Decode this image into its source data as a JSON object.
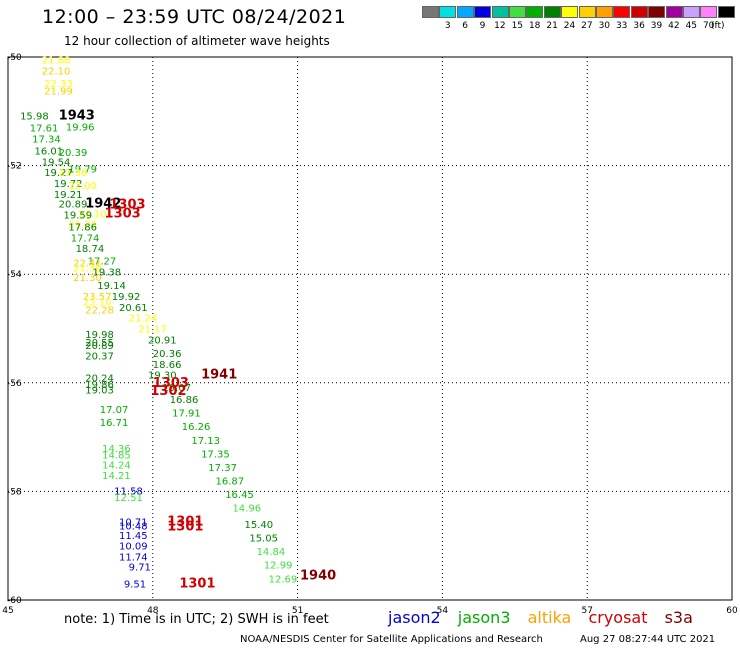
{
  "header": {
    "title": "12:00 – 23:59 UTC 08/24/2021",
    "subtitle": "12 hour collection of altimeter wave heights"
  },
  "color_scale": {
    "labels": [
      "",
      "3",
      "6",
      "9",
      "12",
      "15",
      "18",
      "21",
      "24",
      "27",
      "30",
      "33",
      "36",
      "39",
      "42",
      "45",
      "70"
    ],
    "colors": [
      "#777777",
      "#00e0e0",
      "#00a8ff",
      "#0000e0",
      "#00c0a0",
      "#40e040",
      "#00b000",
      "#008000",
      "#ffff00",
      "#ffd000",
      "#ffa000",
      "#ff0000",
      "#d00000",
      "#800000",
      "#a000a0",
      "#c8a0ff",
      "#ff80ff",
      "#000000"
    ],
    "unit": "(ft)"
  },
  "legend": [
    {
      "name": "jason2",
      "color": "#0000e0"
    },
    {
      "name": "jason3",
      "color": "#00b000"
    },
    {
      "name": "altika",
      "color": "#ffa000"
    },
    {
      "name": "cryosat",
      "color": "#d00000"
    },
    {
      "name": "s3a",
      "color": "#800000"
    }
  ],
  "footer": {
    "note": "note: 1) Time is in UTC; 2) SWH is in feet",
    "credit": "NOAA/NESDIS Center for Satellite Applications and Research",
    "generated": "Aug 27 08:27:44 UTC 2021"
  },
  "chart_data": {
    "type": "scatter",
    "xlim": [
      45,
      60
    ],
    "ylim": [
      -60,
      -50
    ],
    "x_ticks": [
      "45",
      "48",
      "51",
      "54",
      "57",
      "60"
    ],
    "y_ticks": [
      "-50",
      "-52",
      "-54",
      "-56",
      "-58",
      "-60"
    ],
    "grid": true,
    "points": [
      {
        "x": 45.7,
        "y": -50.05,
        "label": "21.88",
        "color": "#ffff00"
      },
      {
        "x": 45.7,
        "y": -50.25,
        "label": "22.10",
        "color": "#ffd000"
      },
      {
        "x": 45.75,
        "y": -50.48,
        "label": "22.33",
        "color": "#ffff00"
      },
      {
        "x": 45.75,
        "y": -50.62,
        "label": "21.99",
        "color": "#ffd000"
      },
      {
        "x": 45.25,
        "y": -51.08,
        "label": "15.98",
        "color": "#008000"
      },
      {
        "x": 46.05,
        "y": -51.08,
        "label": "1943",
        "color": "#000000",
        "big": true
      },
      {
        "x": 46.2,
        "y": -51.28,
        "label": "19.96",
        "color": "#00b000"
      },
      {
        "x": 45.45,
        "y": -51.3,
        "label": "17.61",
        "color": "#00b000"
      },
      {
        "x": 45.5,
        "y": -51.5,
        "label": "17.34",
        "color": "#00b000"
      },
      {
        "x": 45.55,
        "y": -51.72,
        "label": "16.01",
        "color": "#008000"
      },
      {
        "x": 46.05,
        "y": -51.75,
        "label": "20.39",
        "color": "#00b000"
      },
      {
        "x": 45.7,
        "y": -51.92,
        "label": "19.54",
        "color": "#008000"
      },
      {
        "x": 46.25,
        "y": -52.05,
        "label": "19.79",
        "color": "#00b000"
      },
      {
        "x": 45.75,
        "y": -52.12,
        "label": "19.27",
        "color": "#008000"
      },
      {
        "x": 46.05,
        "y": -52.12,
        "label": "21.36",
        "color": "#ffff00"
      },
      {
        "x": 45.95,
        "y": -52.32,
        "label": "19.72",
        "color": "#008000"
      },
      {
        "x": 46.25,
        "y": -52.36,
        "label": "22.00",
        "color": "#ffff00"
      },
      {
        "x": 45.95,
        "y": -52.52,
        "label": "19.21",
        "color": "#008000"
      },
      {
        "x": 46.05,
        "y": -52.7,
        "label": "20.89",
        "color": "#008000"
      },
      {
        "x": 46.6,
        "y": -52.7,
        "label": "1942",
        "color": "#000000",
        "big": true
      },
      {
        "x": 47.1,
        "y": -52.72,
        "label": "1303",
        "color": "#d00000",
        "big": true
      },
      {
        "x": 47.0,
        "y": -52.88,
        "label": "1303",
        "color": "#d00000",
        "big": true
      },
      {
        "x": 46.45,
        "y": -52.88,
        "label": "22.10",
        "color": "#ffff00"
      },
      {
        "x": 46.15,
        "y": -52.9,
        "label": "19.59",
        "color": "#008000"
      },
      {
        "x": 46.25,
        "y": -53.08,
        "label": "21.20",
        "color": "#ffff00"
      },
      {
        "x": 46.25,
        "y": -53.12,
        "label": "17.86",
        "color": "#008000"
      },
      {
        "x": 46.3,
        "y": -53.32,
        "label": "17.74",
        "color": "#00b000"
      },
      {
        "x": 46.4,
        "y": -53.52,
        "label": "18.74",
        "color": "#008000"
      },
      {
        "x": 46.65,
        "y": -53.75,
        "label": "17.27",
        "color": "#00b000"
      },
      {
        "x": 46.35,
        "y": -53.78,
        "label": "22.41",
        "color": "#ffd000"
      },
      {
        "x": 46.35,
        "y": -53.88,
        "label": "21.39",
        "color": "#ffff00"
      },
      {
        "x": 46.75,
        "y": -53.95,
        "label": "19.38",
        "color": "#008000"
      },
      {
        "x": 46.35,
        "y": -54.05,
        "label": "21.30",
        "color": "#ffd000"
      },
      {
        "x": 46.85,
        "y": -54.2,
        "label": "19.14",
        "color": "#008000"
      },
      {
        "x": 46.55,
        "y": -54.4,
        "label": "23.57",
        "color": "#ffd000"
      },
      {
        "x": 47.15,
        "y": -54.4,
        "label": "19.92",
        "color": "#008000"
      },
      {
        "x": 46.55,
        "y": -54.5,
        "label": "23.10",
        "color": "#ffff00"
      },
      {
        "x": 47.3,
        "y": -54.6,
        "label": "20.61",
        "color": "#008000"
      },
      {
        "x": 46.6,
        "y": -54.65,
        "label": "22.28",
        "color": "#ffd000"
      },
      {
        "x": 47.5,
        "y": -54.8,
        "label": "21.24",
        "color": "#ffff00"
      },
      {
        "x": 47.7,
        "y": -55.0,
        "label": "21.17",
        "color": "#ffff00"
      },
      {
        "x": 46.6,
        "y": -55.1,
        "label": "19.98",
        "color": "#008000"
      },
      {
        "x": 46.6,
        "y": -55.25,
        "label": "20.55",
        "color": "#008000"
      },
      {
        "x": 47.9,
        "y": -55.2,
        "label": "20.91",
        "color": "#008000"
      },
      {
        "x": 46.6,
        "y": -55.3,
        "label": "20.89",
        "color": "#008000"
      },
      {
        "x": 48.0,
        "y": -55.45,
        "label": "20.36",
        "color": "#008000"
      },
      {
        "x": 46.6,
        "y": -55.5,
        "label": "20.37",
        "color": "#008000"
      },
      {
        "x": 48.0,
        "y": -55.65,
        "label": "18.66",
        "color": "#008000"
      },
      {
        "x": 47.9,
        "y": -55.85,
        "label": "19.30",
        "color": "#008000"
      },
      {
        "x": 49.0,
        "y": -55.85,
        "label": "1941",
        "color": "#800000",
        "big": true
      },
      {
        "x": 46.6,
        "y": -55.9,
        "label": "20.24",
        "color": "#008000"
      },
      {
        "x": 46.6,
        "y": -56.02,
        "label": "19.86",
        "color": "#008000"
      },
      {
        "x": 48.0,
        "y": -56.0,
        "label": "1303",
        "color": "#d00000",
        "big": true
      },
      {
        "x": 46.6,
        "y": -56.12,
        "label": "19.03",
        "color": "#008000"
      },
      {
        "x": 48.2,
        "y": -56.08,
        "label": "19.07",
        "color": "#008000"
      },
      {
        "x": 47.95,
        "y": -56.15,
        "label": "1302",
        "color": "#d00000",
        "big": true
      },
      {
        "x": 48.35,
        "y": -56.3,
        "label": "16.86",
        "color": "#008000"
      },
      {
        "x": 46.9,
        "y": -56.48,
        "label": "17.07",
        "color": "#00b000"
      },
      {
        "x": 48.4,
        "y": -56.55,
        "label": "17.91",
        "color": "#00b000"
      },
      {
        "x": 46.9,
        "y": -56.72,
        "label": "16.71",
        "color": "#00b000"
      },
      {
        "x": 48.6,
        "y": -56.8,
        "label": "16.26",
        "color": "#00b000"
      },
      {
        "x": 46.95,
        "y": -57.2,
        "label": "14.36",
        "color": "#40e040"
      },
      {
        "x": 48.8,
        "y": -57.05,
        "label": "17.13",
        "color": "#00b000"
      },
      {
        "x": 46.95,
        "y": -57.32,
        "label": "14.85",
        "color": "#40e040"
      },
      {
        "x": 46.95,
        "y": -57.5,
        "label": "14.24",
        "color": "#40e040"
      },
      {
        "x": 49.0,
        "y": -57.3,
        "label": "17.35",
        "color": "#00b000"
      },
      {
        "x": 46.95,
        "y": -57.7,
        "label": "14.21",
        "color": "#40e040"
      },
      {
        "x": 49.15,
        "y": -57.55,
        "label": "17.37",
        "color": "#00b000"
      },
      {
        "x": 49.3,
        "y": -57.8,
        "label": "16.87",
        "color": "#00b000"
      },
      {
        "x": 47.2,
        "y": -57.98,
        "label": "11.58",
        "color": "#0000e0"
      },
      {
        "x": 49.5,
        "y": -58.05,
        "label": "16.45",
        "color": "#00b000"
      },
      {
        "x": 47.2,
        "y": -58.1,
        "label": "12.51",
        "color": "#40e040"
      },
      {
        "x": 49.65,
        "y": -58.3,
        "label": "14.96",
        "color": "#40e040"
      },
      {
        "x": 47.3,
        "y": -58.55,
        "label": "10.71",
        "color": "#0000e0"
      },
      {
        "x": 48.3,
        "y": -58.55,
        "label": "1301",
        "color": "#d00000",
        "big": true
      },
      {
        "x": 47.3,
        "y": -58.63,
        "label": "10.48",
        "color": "#0000e0"
      },
      {
        "x": 48.3,
        "y": -58.65,
        "label": "1301",
        "color": "#d00000",
        "big": true
      },
      {
        "x": 49.9,
        "y": -58.6,
        "label": "15.40",
        "color": "#008000"
      },
      {
        "x": 47.3,
        "y": -58.8,
        "label": "11.45",
        "color": "#0000e0"
      },
      {
        "x": 50.0,
        "y": -58.85,
        "label": "15.05",
        "color": "#008000"
      },
      {
        "x": 47.3,
        "y": -59.0,
        "label": "10.09",
        "color": "#0000e0"
      },
      {
        "x": 50.15,
        "y": -59.1,
        "label": "14.84",
        "color": "#40e040"
      },
      {
        "x": 47.3,
        "y": -59.2,
        "label": "11.74",
        "color": "#0000e0"
      },
      {
        "x": 50.3,
        "y": -59.35,
        "label": "12.99",
        "color": "#40e040"
      },
      {
        "x": 47.5,
        "y": -59.38,
        "label": "9.71",
        "color": "#0000e0"
      },
      {
        "x": 50.4,
        "y": -59.6,
        "label": "12.69",
        "color": "#40e040"
      },
      {
        "x": 51.05,
        "y": -59.55,
        "label": "1940",
        "color": "#800000",
        "big": true
      },
      {
        "x": 47.4,
        "y": -59.7,
        "label": "9.51",
        "color": "#0000e0"
      },
      {
        "x": 48.55,
        "y": -59.7,
        "label": "1301",
        "color": "#d00000",
        "big": true
      }
    ]
  }
}
